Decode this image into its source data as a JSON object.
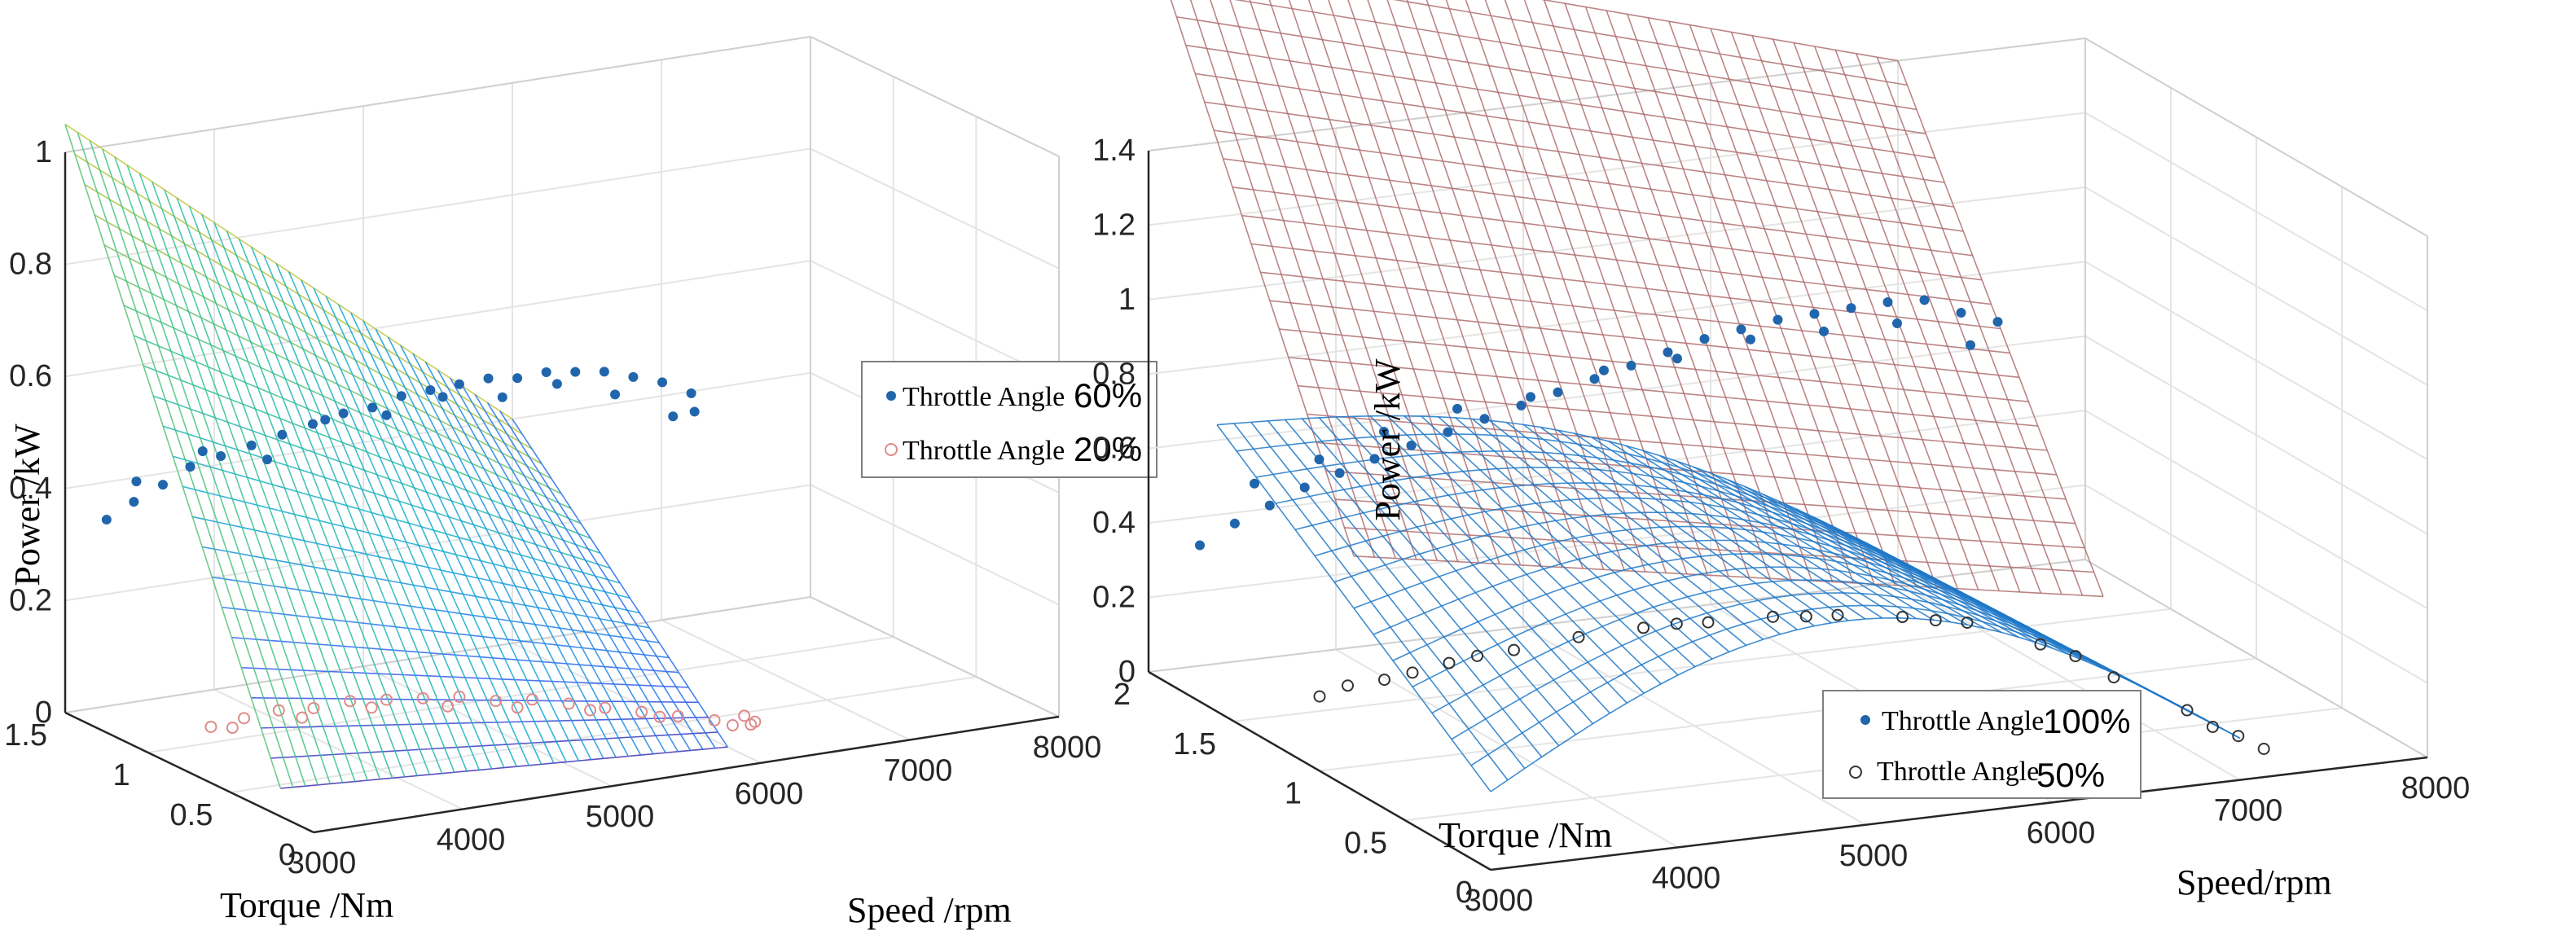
{
  "chart_data": [
    {
      "type": "surface3d",
      "xlabel": "Speed /rpm",
      "ylabel": "Torque /Nm",
      "zlabel": "Power /kW",
      "x_ticks": [
        "3000",
        "4000",
        "5000",
        "6000",
        "7000",
        "8000"
      ],
      "y_ticks": [
        "0",
        "0.5",
        "1",
        "1.5"
      ],
      "z_ticks": [
        "0",
        "0.2",
        "0.4",
        "0.6",
        "0.8",
        "1"
      ],
      "xlim": [
        3000,
        8000
      ],
      "ylim": [
        0,
        1.5
      ],
      "zlim": [
        0,
        1
      ],
      "surfaces": [
        {
          "name": "fit-60",
          "colormap": "parula",
          "x": [
            3000,
            6000
          ],
          "y": [
            0.2,
            1.5
          ],
          "corners": [
            0.05,
            0.0,
            1.05,
            0.4
          ]
        }
      ],
      "legend": [
        {
          "label": "Throttle Angle",
          "suffix": "60%",
          "marker": "dot",
          "color": "#2166ac"
        },
        {
          "label": "Throttle Angle",
          "suffix": "20%",
          "marker": "circle",
          "color": "#e08a8a"
        }
      ],
      "series": [
        {
          "name": "Throttle Angle 60%",
          "points": [
            [
              3000,
              1.25,
              0.38
            ],
            [
              3150,
              1.22,
              0.41
            ],
            [
              3300,
              1.18,
              0.44
            ],
            [
              3450,
              1.15,
              0.47
            ],
            [
              3600,
              1.1,
              0.49
            ],
            [
              3750,
              1.05,
              0.51
            ],
            [
              3900,
              1.0,
              0.53
            ],
            [
              4050,
              0.95,
              0.55
            ],
            [
              4200,
              0.9,
              0.57
            ],
            [
              4350,
              0.86,
              0.58
            ],
            [
              4500,
              0.82,
              0.6
            ],
            [
              4650,
              0.78,
              0.61
            ],
            [
              4800,
              0.74,
              0.62
            ],
            [
              4950,
              0.7,
              0.63
            ],
            [
              5100,
              0.66,
              0.63
            ],
            [
              5250,
              0.62,
              0.64
            ],
            [
              5400,
              0.58,
              0.64
            ],
            [
              5550,
              0.54,
              0.64
            ],
            [
              5700,
              0.5,
              0.63
            ],
            [
              5850,
              0.46,
              0.62
            ],
            [
              6000,
              0.42,
              0.6
            ],
            [
              3200,
              1.25,
              0.44
            ],
            [
              3500,
              1.12,
              0.5
            ],
            [
              3800,
              1.0,
              0.49
            ],
            [
              4100,
              0.92,
              0.56
            ],
            [
              4400,
              0.82,
              0.57
            ],
            [
              4700,
              0.75,
              0.6
            ],
            [
              5000,
              0.66,
              0.6
            ],
            [
              5300,
              0.6,
              0.62
            ],
            [
              5600,
              0.52,
              0.6
            ],
            [
              5900,
              0.44,
              0.56
            ],
            [
              6000,
              0.4,
              0.57
            ]
          ]
        },
        {
          "name": "Throttle Angle 20%",
          "points": [
            [
              3000,
              0.62,
              0.1
            ],
            [
              3200,
              0.6,
              0.11
            ],
            [
              3400,
              0.57,
              0.12
            ],
            [
              3600,
              0.54,
              0.12
            ],
            [
              3800,
              0.5,
              0.13
            ],
            [
              4000,
              0.46,
              0.13
            ],
            [
              4200,
              0.42,
              0.13
            ],
            [
              4400,
              0.38,
              0.13
            ],
            [
              4600,
              0.34,
              0.12
            ],
            [
              4800,
              0.3,
              0.12
            ],
            [
              5000,
              0.26,
              0.11
            ],
            [
              5200,
              0.22,
              0.1
            ],
            [
              5400,
              0.18,
              0.09
            ],
            [
              5600,
              0.14,
              0.08
            ],
            [
              5800,
              0.1,
              0.07
            ],
            [
              6000,
              0.06,
              0.06
            ],
            [
              3100,
              0.58,
              0.1
            ],
            [
              3500,
              0.52,
              0.11
            ],
            [
              3900,
              0.46,
              0.12
            ],
            [
              4300,
              0.36,
              0.12
            ],
            [
              4700,
              0.3,
              0.11
            ],
            [
              5100,
              0.22,
              0.1
            ],
            [
              5500,
              0.16,
              0.08
            ],
            [
              5900,
              0.08,
              0.06
            ],
            [
              6000,
              0.1,
              0.07
            ],
            [
              6050,
              0.08,
              0.06
            ]
          ]
        }
      ]
    },
    {
      "type": "surface3d",
      "xlabel": "Speed/rpm",
      "ylabel": "Torque /Nm",
      "zlabel": "Power /kW",
      "x_ticks": [
        "3000",
        "4000",
        "5000",
        "6000",
        "7000",
        "8000"
      ],
      "y_ticks": [
        "0",
        "0.5",
        "1",
        "1.5",
        "2"
      ],
      "z_ticks": [
        "0",
        "0.2",
        "0.4",
        "0.6",
        "0.8",
        "1",
        "1.2",
        "1.4"
      ],
      "xlim": [
        3000,
        8000
      ],
      "ylim": [
        0,
        2
      ],
      "zlim": [
        0,
        1.4
      ],
      "surfaces": [
        {
          "name": "fit-100",
          "colormap": "pink",
          "x": [
            3000,
            7000
          ],
          "y": [
            0.8,
            2.0
          ],
          "corners": [
            0.45,
            0.2,
            1.42,
            1.0
          ]
        },
        {
          "name": "fit-50",
          "colormap": "blue",
          "x": [
            3000,
            7000
          ],
          "y": [
            0.0,
            1.6
          ],
          "corners": [
            0.15,
            0.08,
            0.55,
            0.05
          ]
        }
      ],
      "legend": [
        {
          "label": "Throttle Angle",
          "suffix": "100%",
          "marker": "dot",
          "color": "#2166ac"
        },
        {
          "label": "Throttle Angle",
          "suffix": "50%",
          "marker": "circle",
          "color": "#333333"
        }
      ],
      "series": [
        {
          "name": "Throttle Angle 100%",
          "points": [
            [
              3000,
              1.7,
              0.42
            ],
            [
              3150,
              1.66,
              0.48
            ],
            [
              3300,
              1.62,
              0.53
            ],
            [
              3450,
              1.58,
              0.58
            ],
            [
              3600,
              1.54,
              0.62
            ],
            [
              3750,
              1.5,
              0.66
            ],
            [
              3900,
              1.45,
              0.7
            ],
            [
              4050,
              1.4,
              0.74
            ],
            [
              4200,
              1.35,
              0.78
            ],
            [
              4350,
              1.3,
              0.82
            ],
            [
              4500,
              1.25,
              0.86
            ],
            [
              4650,
              1.2,
              0.9
            ],
            [
              4800,
              1.15,
              0.94
            ],
            [
              4950,
              1.1,
              0.98
            ],
            [
              5100,
              1.05,
              1.02
            ],
            [
              5250,
              1.0,
              1.05
            ],
            [
              5400,
              0.95,
              1.08
            ],
            [
              5550,
              0.9,
              1.1
            ],
            [
              5700,
              0.85,
              1.12
            ],
            [
              5850,
              0.8,
              1.14
            ],
            [
              6000,
              0.75,
              1.15
            ],
            [
              6150,
              0.7,
              1.12
            ],
            [
              6300,
              0.65,
              1.1
            ],
            [
              3200,
              1.6,
              0.6
            ],
            [
              3500,
              1.55,
              0.66
            ],
            [
              3800,
              1.5,
              0.73
            ],
            [
              4100,
              1.4,
              0.8
            ],
            [
              4400,
              1.3,
              0.84
            ],
            [
              4700,
              1.2,
              0.92
            ],
            [
              5000,
              1.1,
              0.96
            ],
            [
              5300,
              1.0,
              1.02
            ],
            [
              5600,
              0.9,
              1.05
            ],
            [
              5900,
              0.8,
              1.08
            ],
            [
              6200,
              0.7,
              1.03
            ]
          ]
        },
        {
          "name": "Throttle Angle 50%",
          "points": [
            [
              3000,
              1.0,
              0.2
            ],
            [
              3300,
              0.95,
              0.24
            ],
            [
              3600,
              0.9,
              0.28
            ],
            [
              3900,
              0.85,
              0.31
            ],
            [
              4200,
              0.8,
              0.34
            ],
            [
              4500,
              0.75,
              0.36
            ],
            [
              4800,
              0.7,
              0.37
            ],
            [
              5100,
              0.65,
              0.38
            ],
            [
              5400,
              0.6,
              0.38
            ],
            [
              5700,
              0.55,
              0.37
            ],
            [
              6000,
              0.5,
              0.35
            ],
            [
              6300,
              0.4,
              0.3
            ],
            [
              6600,
              0.3,
              0.22
            ],
            [
              6900,
              0.2,
              0.14
            ],
            [
              7100,
              0.12,
              0.08
            ],
            [
              7200,
              0.08,
              0.05
            ],
            [
              3150,
              1.0,
              0.22
            ],
            [
              3450,
              0.95,
              0.25
            ],
            [
              3750,
              0.9,
              0.29
            ],
            [
              4650,
              0.72,
              0.37
            ],
            [
              5250,
              0.62,
              0.38
            ],
            [
              5850,
              0.52,
              0.36
            ],
            [
              6450,
              0.36,
              0.27
            ],
            [
              7000,
              0.16,
              0.1
            ]
          ]
        }
      ]
    }
  ]
}
